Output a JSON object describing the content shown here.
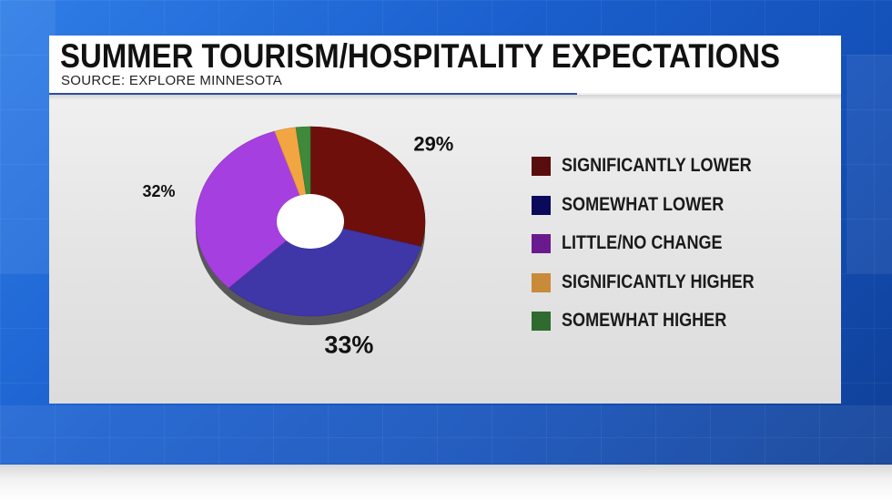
{
  "header": {
    "title": "SUMMER TOURISM/HOSPITALITY EXPECTATIONS",
    "subtitle": "SOURCE: EXPLORE MINNESOTA"
  },
  "chart_data": {
    "type": "pie",
    "style": "3d-donut",
    "title": "SUMMER TOURISM/HOSPITALITY EXPECTATIONS",
    "subtitle": "SOURCE: EXPLORE MINNESOTA",
    "legend_position": "right",
    "series": [
      {
        "name": "SIGNIFICANTLY LOWER",
        "value": 29,
        "label": "29%",
        "color": "#6e0f0c",
        "legend_color": "#5a0d0d"
      },
      {
        "name": "SOMEWHAT LOWER",
        "value": 33,
        "label": "33%",
        "color": "#3f36a8",
        "legend_color": "#0a0a5c"
      },
      {
        "name": "LITTLE/NO CHANGE",
        "value": 32,
        "label": "32%",
        "color": "#a63fe0",
        "legend_color": "#6a1a8e"
      },
      {
        "name": "SIGNIFICANTLY HIGHER",
        "value": 3,
        "label": "",
        "color": "#f2a541",
        "legend_color": "#c98a3a"
      },
      {
        "name": "SOMEWHAT HIGHER",
        "value": 2,
        "label": "",
        "color": "#3e8a3a",
        "legend_color": "#2f6b2f"
      }
    ]
  }
}
